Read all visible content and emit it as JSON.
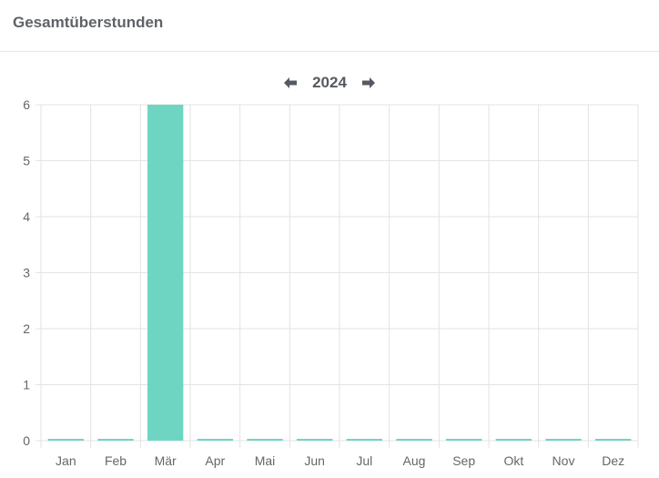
{
  "card": {
    "title": "Gesamtüberstunden"
  },
  "year_nav": {
    "prev_icon": "arrow-left-icon",
    "next_icon": "arrow-right-icon",
    "year": "2024"
  },
  "colors": {
    "bar": "#6fd5c3",
    "grid": "#e3e3e3",
    "text": "#666666"
  },
  "chart_data": {
    "type": "bar",
    "categories": [
      "Jan",
      "Feb",
      "Mär",
      "Apr",
      "Mai",
      "Jun",
      "Jul",
      "Aug",
      "Sep",
      "Okt",
      "Nov",
      "Dez"
    ],
    "values": [
      0,
      0,
      6,
      0,
      0,
      0,
      0,
      0,
      0,
      0,
      0,
      0
    ],
    "yticks": [
      "0",
      "1",
      "2",
      "3",
      "4",
      "5",
      "6"
    ],
    "ylim": [
      0,
      6
    ],
    "grid": true,
    "legend": "none"
  }
}
